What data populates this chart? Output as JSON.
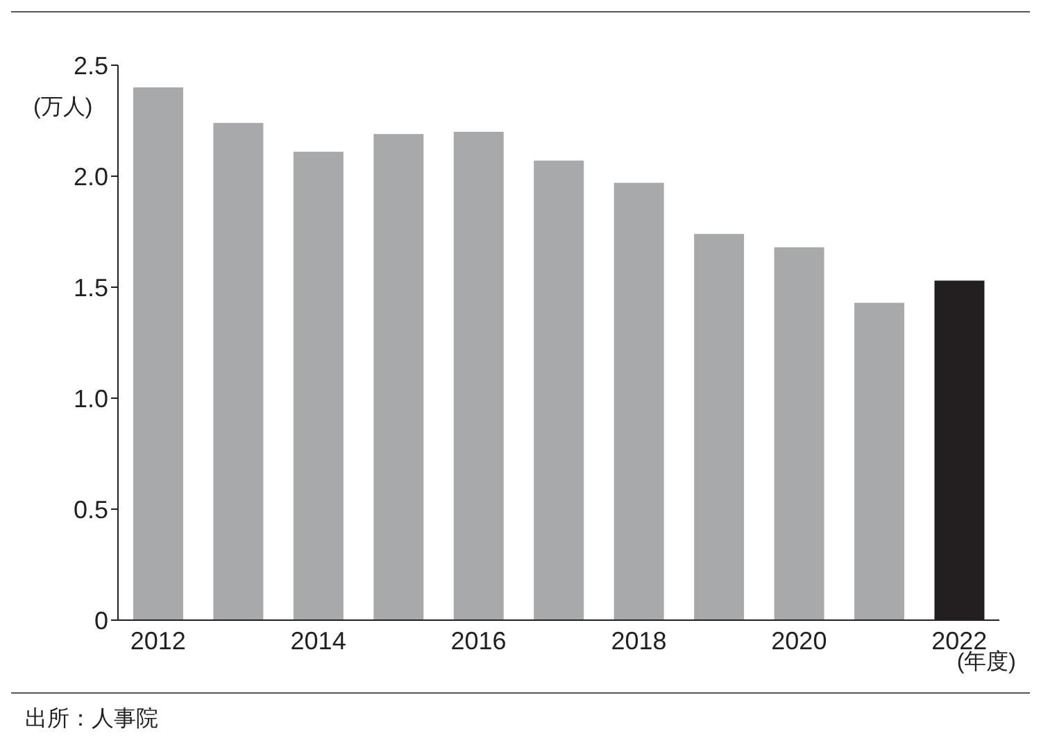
{
  "chart_data": {
    "type": "bar",
    "ylabel": "(万人)",
    "xlabel": "(年度)",
    "categories": [
      "2012",
      null,
      "2014",
      null,
      "2016",
      null,
      "2018",
      null,
      "2020",
      null,
      "2022"
    ],
    "values": [
      2.4,
      2.24,
      2.11,
      2.19,
      2.2,
      2.07,
      1.97,
      1.74,
      1.68,
      1.43,
      1.53
    ],
    "colors": [
      "#a7a9ab",
      "#a7a9ab",
      "#a7a9ab",
      "#a7a9ab",
      "#a7a9ab",
      "#a7a9ab",
      "#a7a9ab",
      "#a7a9ab",
      "#a7a9ab",
      "#a7a9ab",
      "#231f20"
    ],
    "ylim": [
      0,
      2.5
    ],
    "yticks": [
      0,
      0.5,
      {
        "value": 1,
        "label": "1.0"
      },
      1.5,
      {
        "value": 2,
        "label": "2.0"
      },
      2.5
    ],
    "annotations": [
      "出所：人事院"
    ]
  }
}
